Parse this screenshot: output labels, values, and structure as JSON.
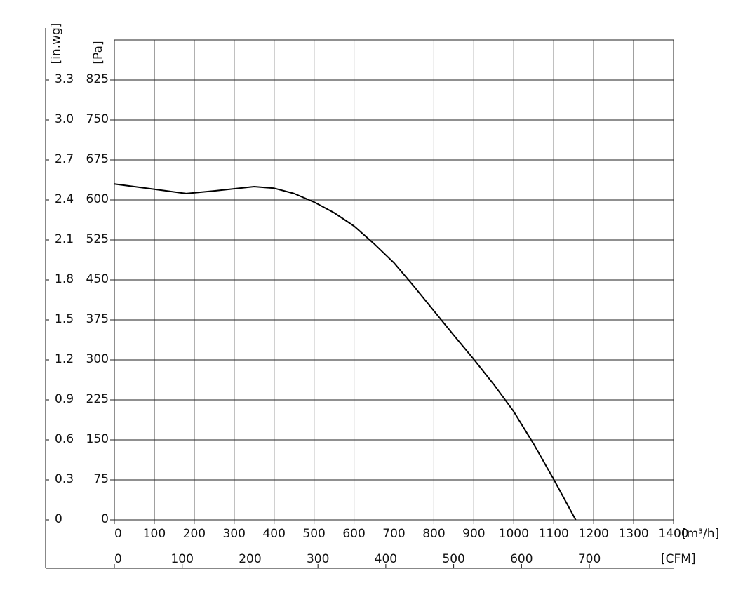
{
  "chart_data": {
    "type": "line",
    "x_label": "[m³/h]",
    "x2_label": "[CFM]",
    "y_label": "[Pa]",
    "y2_label": "[in.wg]",
    "x": [
      0,
      100,
      180,
      250,
      350,
      400,
      450,
      500,
      550,
      600,
      650,
      700,
      750,
      800,
      850,
      900,
      950,
      1000,
      1050,
      1100,
      1155
    ],
    "series": [
      {
        "color": "#000000",
        "values": [
          630,
          620,
          612,
          617,
          625,
          622,
          612,
          596,
          576,
          551,
          518,
          482,
          438,
          392,
          346,
          301,
          254,
          203,
          142,
          76,
          0
        ]
      }
    ],
    "xlim": [
      0,
      1400
    ],
    "xticks": [
      0,
      100,
      200,
      300,
      400,
      500,
      600,
      700,
      800,
      900,
      1000,
      1100,
      1200,
      1300,
      1400
    ],
    "x2lim": [
      0,
      824
    ],
    "x2ticks": [
      0,
      100,
      200,
      300,
      400,
      500,
      600,
      700
    ],
    "ylim": [
      0,
      900
    ],
    "yticks": [
      0,
      75,
      150,
      225,
      300,
      375,
      450,
      525,
      600,
      675,
      750,
      825
    ],
    "y2lim": [
      0,
      3.6
    ],
    "y2ticks": [
      0,
      0.3,
      0.6,
      0.9,
      1.2,
      1.5,
      1.8,
      2.1,
      2.4,
      2.7,
      {
        "value": 3,
        "label": "3.0"
      },
      3.3
    ],
    "grid": true
  }
}
